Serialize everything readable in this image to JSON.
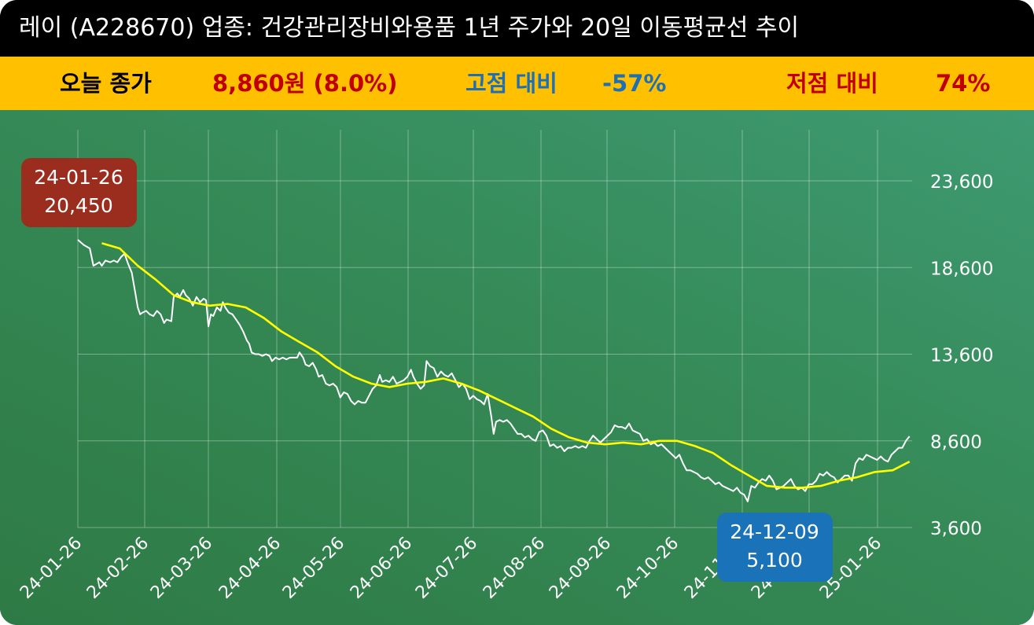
{
  "header": {
    "title": "레이 (A228670) 업종: 건강관리장비와용품 1년 주가와 20일 이동평균선 추이"
  },
  "stats": {
    "close_label": "오늘 종가",
    "close_value": "8,860원 (8.0%)",
    "high_label": "고점 대비",
    "high_value": "-57%",
    "low_label": "저점 대비",
    "low_value": "74%"
  },
  "colors": {
    "title_bg": "#000000",
    "stat_bg": "#FFC000",
    "close_value": "#C00000",
    "high": "#1F6FB5",
    "low": "#C00000",
    "price_line": "#FFFFFF",
    "ma_line": "#FFFF00",
    "high_box": "#9B2D1F",
    "low_box": "#1A72B8"
  },
  "chart_data": {
    "type": "line",
    "ylim": [
      3600,
      23600
    ],
    "yticks": [
      3600,
      8600,
      13600,
      18600,
      23600
    ],
    "ytick_labels": [
      "3,600",
      "8,600",
      "13,600",
      "18,600",
      "23,600"
    ],
    "xtick_labels": [
      "24-01-26",
      "24-02-26",
      "24-03-26",
      "24-04-26",
      "24-05-26",
      "24-06-26",
      "24-07-26",
      "24-08-26",
      "24-09-26",
      "24-10-26",
      "24-11-26",
      "24-12-26",
      "25-01-26"
    ],
    "series": [
      {
        "key": "price",
        "points": [
          [
            0,
            20200
          ],
          [
            5,
            19900
          ],
          [
            10,
            19700
          ],
          [
            13,
            18700
          ],
          [
            18,
            18900
          ],
          [
            20,
            18700
          ],
          [
            23,
            19000
          ],
          [
            27,
            18900
          ],
          [
            30,
            19000
          ],
          [
            33,
            18900
          ],
          [
            36,
            19200
          ],
          [
            39,
            19400
          ],
          [
            42,
            18800
          ],
          [
            45,
            18300
          ],
          [
            48,
            17100
          ],
          [
            50,
            16300
          ],
          [
            52,
            15900
          ],
          [
            54,
            16000
          ],
          [
            57,
            16100
          ],
          [
            60,
            15900
          ],
          [
            63,
            15800
          ],
          [
            66,
            16100
          ],
          [
            69,
            15900
          ],
          [
            72,
            15400
          ],
          [
            74,
            15600
          ],
          [
            78,
            15500
          ],
          [
            80,
            16900
          ],
          [
            83,
            17100
          ],
          [
            85,
            16900
          ],
          [
            88,
            17300
          ],
          [
            90,
            17000
          ],
          [
            93,
            16800
          ],
          [
            96,
            16400
          ],
          [
            99,
            16900
          ],
          [
            102,
            16600
          ],
          [
            105,
            16800
          ],
          [
            107,
            16700
          ],
          [
            109,
            15200
          ],
          [
            111,
            15900
          ],
          [
            113,
            15800
          ],
          [
            116,
            16300
          ],
          [
            119,
            16100
          ],
          [
            121,
            16600
          ],
          [
            123,
            16300
          ],
          [
            126,
            16000
          ],
          [
            129,
            15900
          ],
          [
            132,
            15600
          ],
          [
            135,
            15300
          ],
          [
            138,
            14900
          ],
          [
            141,
            14400
          ],
          [
            143,
            14200
          ],
          [
            145,
            13700
          ],
          [
            148,
            13600
          ],
          [
            151,
            13600
          ],
          [
            154,
            13500
          ],
          [
            157,
            13600
          ],
          [
            160,
            13500
          ],
          [
            162,
            13200
          ],
          [
            165,
            13400
          ],
          [
            168,
            13300
          ],
          [
            171,
            13400
          ],
          [
            174,
            13300
          ],
          [
            177,
            13400
          ],
          [
            180,
            13400
          ],
          [
            183,
            13400
          ],
          [
            185,
            13700
          ],
          [
            188,
            13400
          ],
          [
            190,
            13000
          ],
          [
            193,
            12900
          ],
          [
            196,
            13100
          ],
          [
            199,
            12700
          ],
          [
            201,
            12300
          ],
          [
            204,
            12400
          ],
          [
            207,
            11900
          ],
          [
            210,
            11800
          ],
          [
            213,
            11900
          ],
          [
            216,
            11700
          ],
          [
            219,
            11100
          ],
          [
            222,
            11400
          ],
          [
            225,
            11300
          ],
          [
            228,
            10900
          ],
          [
            231,
            10700
          ],
          [
            234,
            10900
          ],
          [
            237,
            10800
          ],
          [
            240,
            10800
          ],
          [
            243,
            11200
          ],
          [
            246,
            11600
          ],
          [
            249,
            11800
          ],
          [
            252,
            12400
          ],
          [
            254,
            12000
          ],
          [
            257,
            12100
          ],
          [
            260,
            12000
          ],
          [
            263,
            12300
          ],
          [
            266,
            11900
          ],
          [
            269,
            12000
          ],
          [
            272,
            12100
          ],
          [
            275,
            12300
          ],
          [
            278,
            12700
          ],
          [
            280,
            12300
          ],
          [
            283,
            11900
          ],
          [
            286,
            11600
          ],
          [
            289,
            11800
          ],
          [
            291,
            13200
          ],
          [
            294,
            12900
          ],
          [
            297,
            12800
          ],
          [
            300,
            12300
          ],
          [
            303,
            12600
          ],
          [
            306,
            12400
          ],
          [
            309,
            12300
          ],
          [
            312,
            12500
          ],
          [
            315,
            12100
          ],
          [
            318,
            11700
          ],
          [
            321,
            11900
          ],
          [
            324,
            11600
          ],
          [
            327,
            11000
          ],
          [
            330,
            11200
          ],
          [
            333,
            11000
          ],
          [
            336,
            10900
          ],
          [
            339,
            10700
          ],
          [
            342,
            11300
          ],
          [
            345,
            10000
          ],
          [
            347,
            9000
          ],
          [
            349,
            9700
          ],
          [
            352,
            9800
          ],
          [
            355,
            9700
          ],
          [
            358,
            9800
          ],
          [
            361,
            9600
          ],
          [
            364,
            9300
          ],
          [
            367,
            9000
          ],
          [
            370,
            9000
          ],
          [
            373,
            8800
          ],
          [
            376,
            8900
          ],
          [
            379,
            8700
          ],
          [
            382,
            8600
          ],
          [
            385,
            9100
          ],
          [
            388,
            9200
          ],
          [
            391,
            8900
          ],
          [
            394,
            8300
          ],
          [
            397,
            8400
          ],
          [
            400,
            8200
          ],
          [
            403,
            8300
          ],
          [
            406,
            8000
          ],
          [
            409,
            8200
          ],
          [
            412,
            8200
          ],
          [
            415,
            8300
          ],
          [
            418,
            8200
          ],
          [
            421,
            8300
          ],
          [
            424,
            8200
          ],
          [
            427,
            8600
          ],
          [
            430,
            8900
          ],
          [
            433,
            8700
          ],
          [
            436,
            8500
          ],
          [
            439,
            8700
          ],
          [
            442,
            8900
          ],
          [
            445,
            9100
          ],
          [
            448,
            9500
          ],
          [
            451,
            9400
          ],
          [
            454,
            9400
          ],
          [
            457,
            9300
          ],
          [
            460,
            9600
          ],
          [
            463,
            9200
          ],
          [
            466,
            9100
          ],
          [
            469,
            9000
          ],
          [
            472,
            8600
          ],
          [
            475,
            8700
          ],
          [
            478,
            8400
          ],
          [
            481,
            8500
          ],
          [
            484,
            8300
          ],
          [
            487,
            8400
          ],
          [
            490,
            8200
          ],
          [
            493,
            8000
          ],
          [
            496,
            7800
          ],
          [
            499,
            7600
          ],
          [
            502,
            7800
          ],
          [
            505,
            7300
          ],
          [
            508,
            6900
          ],
          [
            511,
            6900
          ],
          [
            514,
            6800
          ],
          [
            517,
            6700
          ],
          [
            520,
            6500
          ],
          [
            523,
            6400
          ],
          [
            526,
            6500
          ],
          [
            529,
            6300
          ],
          [
            532,
            6100
          ],
          [
            535,
            6200
          ],
          [
            538,
            6000
          ],
          [
            541,
            5900
          ],
          [
            544,
            5800
          ],
          [
            547,
            5700
          ],
          [
            550,
            5900
          ],
          [
            553,
            5600
          ],
          [
            556,
            5500
          ],
          [
            559,
            5100
          ],
          [
            562,
            6000
          ],
          [
            565,
            5900
          ],
          [
            568,
            6200
          ],
          [
            571,
            6400
          ],
          [
            574,
            6300
          ],
          [
            577,
            6600
          ],
          [
            580,
            6300
          ],
          [
            583,
            5800
          ],
          [
            586,
            5900
          ],
          [
            589,
            6000
          ],
          [
            592,
            6200
          ],
          [
            595,
            6400
          ],
          [
            598,
            6000
          ],
          [
            601,
            5800
          ],
          [
            604,
            5900
          ],
          [
            607,
            5700
          ],
          [
            610,
            6100
          ],
          [
            613,
            6100
          ],
          [
            616,
            6300
          ],
          [
            619,
            6700
          ],
          [
            622,
            6600
          ],
          [
            625,
            6800
          ],
          [
            628,
            6600
          ],
          [
            631,
            6500
          ],
          [
            634,
            6200
          ],
          [
            637,
            6400
          ],
          [
            640,
            6600
          ],
          [
            643,
            6600
          ],
          [
            646,
            6300
          ],
          [
            649,
            7300
          ],
          [
            652,
            7600
          ],
          [
            655,
            7500
          ],
          [
            658,
            7800
          ],
          [
            661,
            7700
          ],
          [
            664,
            7600
          ],
          [
            667,
            7500
          ],
          [
            670,
            7700
          ],
          [
            673,
            7500
          ],
          [
            676,
            7400
          ],
          [
            679,
            7800
          ],
          [
            682,
            8000
          ],
          [
            685,
            8200
          ],
          [
            688,
            8200
          ],
          [
            691,
            8600
          ],
          [
            694,
            8860
          ]
        ]
      },
      {
        "key": "ma20",
        "points": [
          [
            20,
            20000
          ],
          [
            35,
            19700
          ],
          [
            50,
            18700
          ],
          [
            65,
            17900
          ],
          [
            80,
            17000
          ],
          [
            95,
            16600
          ],
          [
            110,
            16400
          ],
          [
            125,
            16500
          ],
          [
            140,
            16300
          ],
          [
            155,
            15700
          ],
          [
            170,
            14900
          ],
          [
            185,
            14300
          ],
          [
            200,
            13700
          ],
          [
            215,
            12900
          ],
          [
            230,
            12300
          ],
          [
            245,
            11900
          ],
          [
            260,
            11700
          ],
          [
            275,
            11900
          ],
          [
            290,
            12000
          ],
          [
            305,
            12200
          ],
          [
            320,
            11900
          ],
          [
            335,
            11500
          ],
          [
            350,
            11000
          ],
          [
            365,
            10500
          ],
          [
            380,
            10000
          ],
          [
            395,
            9300
          ],
          [
            410,
            8800
          ],
          [
            425,
            8500
          ],
          [
            440,
            8400
          ],
          [
            455,
            8500
          ],
          [
            470,
            8400
          ],
          [
            485,
            8600
          ],
          [
            500,
            8600
          ],
          [
            515,
            8300
          ],
          [
            530,
            7900
          ],
          [
            545,
            7200
          ],
          [
            560,
            6600
          ],
          [
            575,
            6000
          ],
          [
            590,
            5900
          ],
          [
            605,
            5900
          ],
          [
            620,
            6000
          ],
          [
            635,
            6300
          ],
          [
            650,
            6500
          ],
          [
            665,
            6800
          ],
          [
            680,
            6900
          ],
          [
            694,
            7400
          ]
        ]
      }
    ],
    "annotations": [
      {
        "key": "high",
        "date": "24-01-26",
        "value": "20,450",
        "day": 0,
        "y": 20450
      },
      {
        "key": "low",
        "date": "24-12-09",
        "value": "5,100",
        "day": 559,
        "y": 5100
      }
    ]
  }
}
